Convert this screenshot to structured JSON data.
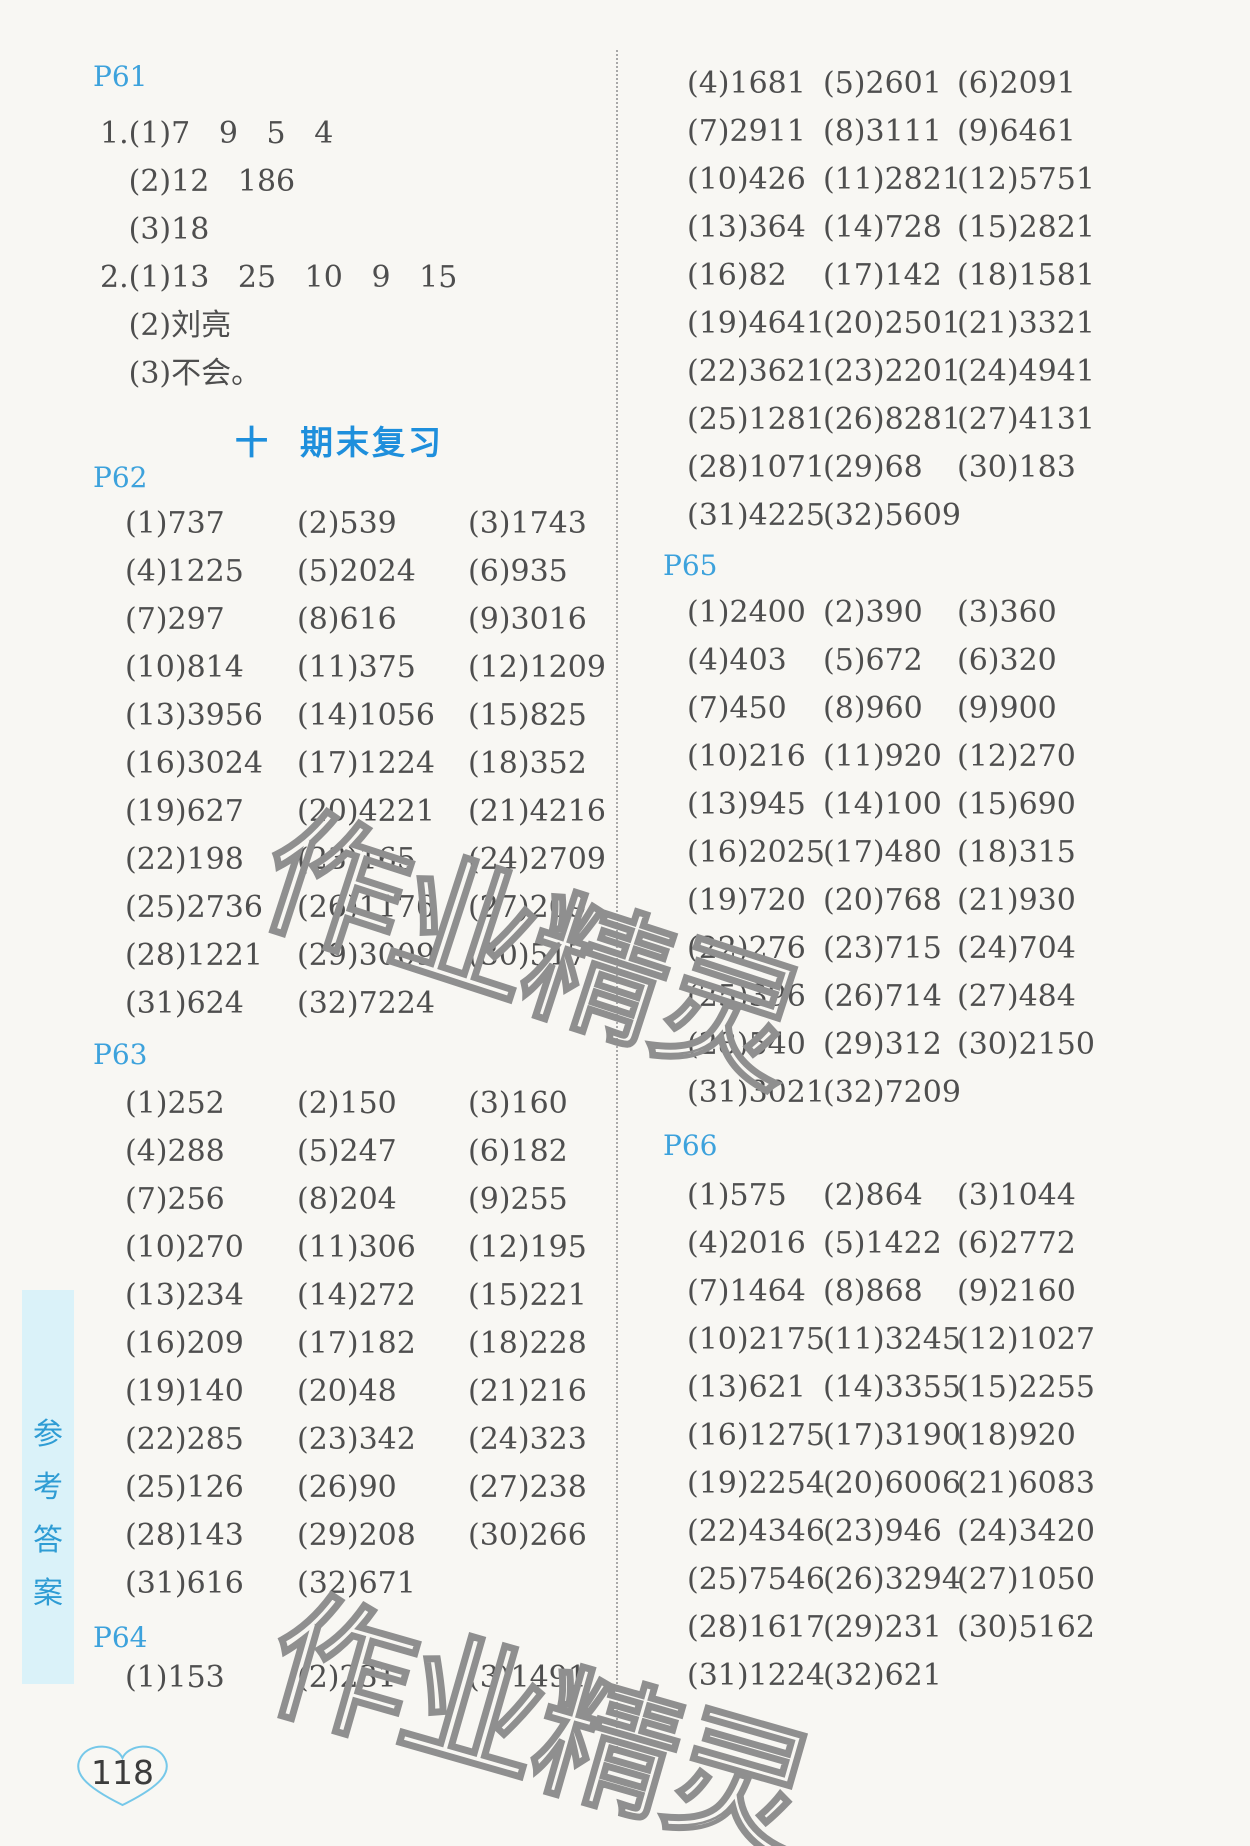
{
  "page": {
    "background": "#f8f7f3",
    "number": "118"
  },
  "watermark": {
    "text": "作业精灵",
    "outline_color": "#8f8f8f"
  },
  "sidebar": {
    "label": "参考答案",
    "chars": [
      "参",
      "考",
      "答",
      "案"
    ],
    "strip_color": "#daf2f9",
    "text_color": "#2e9cd4"
  },
  "title": {
    "text": "十  期末复习",
    "color": "#1e8fdc"
  },
  "p61": {
    "header": "P61",
    "lines": [
      "1.(1)7   9   5   4",
      "   (2)12   186",
      "   (3)18",
      "2.(1)13   25   10   9   15",
      "   (2)刘亮",
      "   (3)不会。"
    ]
  },
  "sections": {
    "p62": {
      "header": "P62",
      "rows": [
        [
          "(1)737",
          "(2)539",
          "(3)1743"
        ],
        [
          "(4)1225",
          "(5)2024",
          "(6)935"
        ],
        [
          "(7)297",
          "(8)616",
          "(9)3016"
        ],
        [
          "(10)814",
          "(11)375",
          "(12)1209"
        ],
        [
          "(13)3956",
          "(14)1056",
          "(15)825"
        ],
        [
          "(16)3024",
          "(17)1224",
          "(18)352"
        ],
        [
          "(19)627",
          "(20)4221",
          "(21)4216"
        ],
        [
          "(22)198",
          "(23)165",
          "(24)2709"
        ],
        [
          "(25)2736",
          "(26)1176",
          "(27)209"
        ],
        [
          "(28)1221",
          "(29)3009",
          "(30)517"
        ],
        [
          "(31)624",
          "(32)7224",
          ""
        ]
      ]
    },
    "p63": {
      "header": "P63",
      "rows": [
        [
          "(1)252",
          "(2)150",
          "(3)160"
        ],
        [
          "(4)288",
          "(5)247",
          "(6)182"
        ],
        [
          "(7)256",
          "(8)204",
          "(9)255"
        ],
        [
          "(10)270",
          "(11)306",
          "(12)195"
        ],
        [
          "(13)234",
          "(14)272",
          "(15)221"
        ],
        [
          "(16)209",
          "(17)182",
          "(18)228"
        ],
        [
          "(19)140",
          "(20)48",
          "(21)216"
        ],
        [
          "(22)285",
          "(23)342",
          "(24)323"
        ],
        [
          "(25)126",
          "(26)90",
          "(27)238"
        ],
        [
          "(28)143",
          "(29)208",
          "(30)266"
        ],
        [
          "(31)616",
          "(32)671",
          ""
        ]
      ]
    },
    "p64_left": {
      "header": "P64",
      "rows": [
        [
          "(1)153",
          "(2)231",
          "(3)1491"
        ]
      ]
    },
    "p64_right": {
      "rows": [
        [
          "(4)1681",
          "(5)2601",
          "(6)2091"
        ],
        [
          "(7)2911",
          "(8)3111",
          "(9)6461"
        ],
        [
          "(10)426",
          "(11)2821",
          "(12)5751"
        ],
        [
          "(13)364",
          "(14)728",
          "(15)2821"
        ],
        [
          "(16)82",
          "(17)142",
          "(18)1581"
        ],
        [
          "(19)4641",
          "(20)2501",
          "(21)3321"
        ],
        [
          "(22)3621",
          "(23)2201",
          "(24)4941"
        ],
        [
          "(25)1281",
          "(26)8281",
          "(27)4131"
        ],
        [
          "(28)1071",
          "(29)68",
          "(30)183"
        ],
        [
          "(31)4225",
          "(32)5609",
          ""
        ]
      ]
    },
    "p65": {
      "header": "P65",
      "rows": [
        [
          "(1)2400",
          "(2)390",
          "(3)360"
        ],
        [
          "(4)403",
          "(5)672",
          "(6)320"
        ],
        [
          "(7)450",
          "(8)960",
          "(9)900"
        ],
        [
          "(10)216",
          "(11)920",
          "(12)270"
        ],
        [
          "(13)945",
          "(14)100",
          "(15)690"
        ],
        [
          "(16)2025",
          "(17)480",
          "(18)315"
        ],
        [
          "(19)720",
          "(20)768",
          "(21)930"
        ],
        [
          "(22)276",
          "(23)715",
          "(24)704"
        ],
        [
          "(25)396",
          "(26)714",
          "(27)484"
        ],
        [
          "(28)540",
          "(29)312",
          "(30)2150"
        ],
        [
          "(31)3021",
          "(32)7209",
          ""
        ]
      ]
    },
    "p66": {
      "header": "P66",
      "rows": [
        [
          "(1)575",
          "(2)864",
          "(3)1044"
        ],
        [
          "(4)2016",
          "(5)1422",
          "(6)2772"
        ],
        [
          "(7)1464",
          "(8)868",
          "(9)2160"
        ],
        [
          "(10)2175",
          "(11)3245",
          "(12)1027"
        ],
        [
          "(13)621",
          "(14)3355",
          "(15)2255"
        ],
        [
          "(16)1275",
          "(17)3190",
          "(18)920"
        ],
        [
          "(19)2254",
          "(20)6006",
          "(21)6083"
        ],
        [
          "(22)4346",
          "(23)946",
          "(24)3420"
        ],
        [
          "(25)7546",
          "(26)3294",
          "(27)1050"
        ],
        [
          "(28)1617",
          "(29)231",
          "(30)5162"
        ],
        [
          "(31)1224",
          "(32)621",
          ""
        ]
      ]
    }
  }
}
